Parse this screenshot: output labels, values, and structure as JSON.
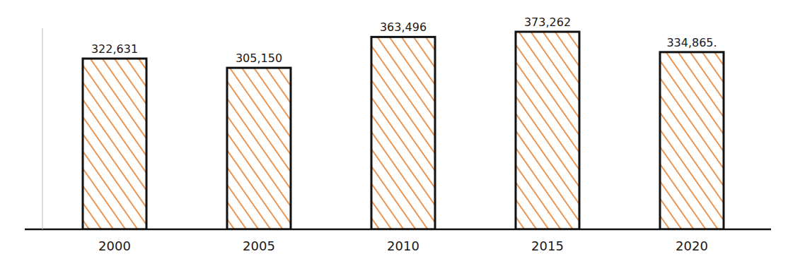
{
  "chart_data": {
    "type": "bar",
    "categories": [
      "2000",
      "2005",
      "2010",
      "2015",
      "2020"
    ],
    "values": [
      322631,
      305150,
      363496,
      373262,
      334865
    ],
    "value_labels": [
      "322,631",
      "305,150",
      "363,496",
      "373,262",
      "334,865."
    ],
    "color": "#e8873a",
    "ylim": [
      0,
      380000
    ],
    "yticks": [],
    "data_labels": true,
    "tick_labels": "x",
    "grid": false
  }
}
